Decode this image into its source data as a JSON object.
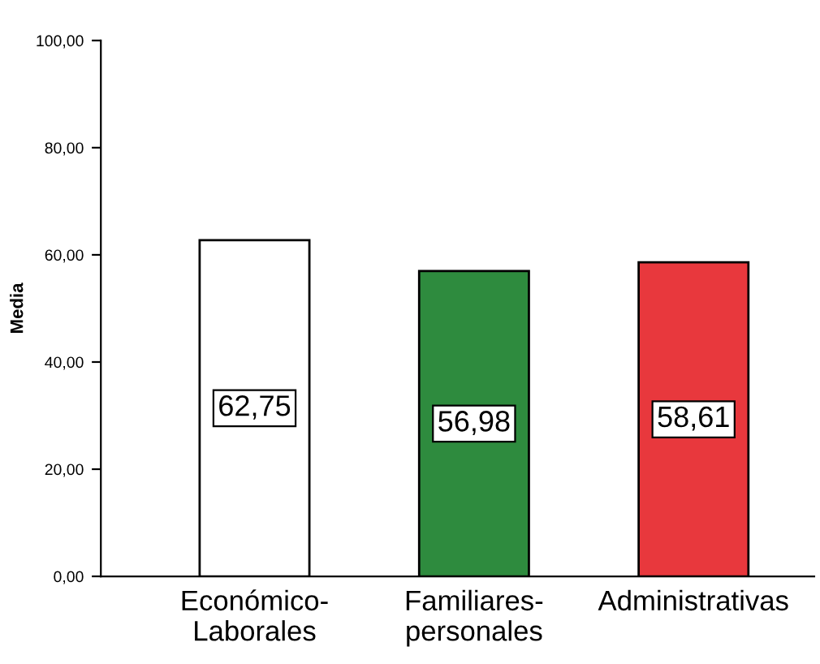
{
  "chart_data": {
    "type": "bar",
    "ylabel": "Media",
    "categories": [
      "Económico-\nLaborales",
      "Familiares-\npersonales",
      "Administrativas"
    ],
    "values": [
      62.75,
      56.98,
      58.61
    ],
    "colors": [
      "#ffffff",
      "#2e8b3e",
      "#e8383d"
    ],
    "value_labels": [
      "62,75",
      "56,98",
      "58,61"
    ],
    "ylim": [
      0,
      100
    ],
    "yticks": [
      {
        "value": 0,
        "label": "0,00"
      },
      {
        "value": 20,
        "label": "20,00"
      },
      {
        "value": 40,
        "label": "40,00"
      },
      {
        "value": 60,
        "label": "60,00"
      },
      {
        "value": 80,
        "label": "80,00"
      },
      {
        "value": 100,
        "label": "100,00"
      }
    ],
    "grid": false
  }
}
